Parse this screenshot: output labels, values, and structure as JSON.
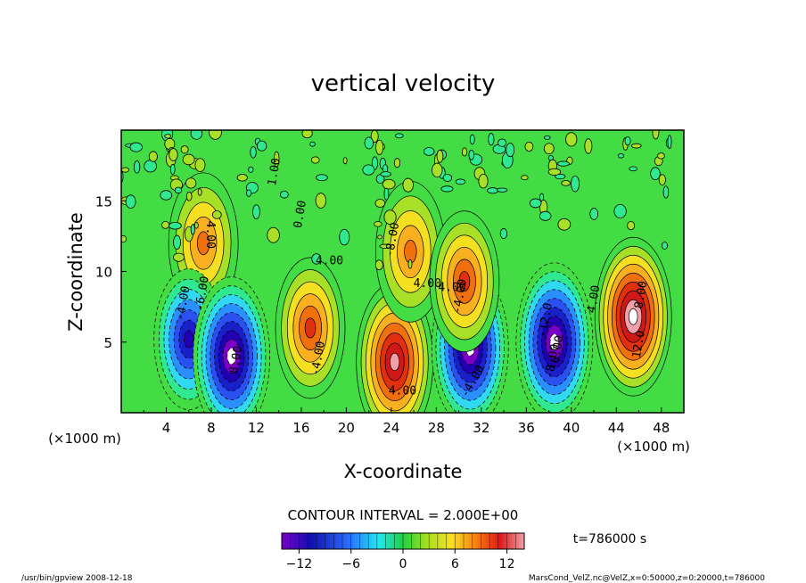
{
  "chart_data": {
    "type": "heatmap",
    "title": "vertical velocity",
    "xlabel": "X-coordinate",
    "ylabel": "Z-coordinate",
    "x_unit": "(×1000 m)",
    "x_unit_right": "(×1000 m)",
    "xlim": [
      0,
      50
    ],
    "ylim": [
      0,
      20
    ],
    "x_ticks": [
      "4",
      "8",
      "12",
      "16",
      "20",
      "24",
      "28",
      "32",
      "36",
      "40",
      "44",
      "48"
    ],
    "y_ticks": [
      "5",
      "10",
      "15"
    ],
    "contour_interval_text": "CONTOUR INTERVAL = 2.000E+00",
    "colorbar": {
      "range": [
        -14,
        14
      ],
      "ticks": [
        "−12",
        "−6",
        "0",
        "6",
        "12"
      ]
    },
    "time_label": "t=786000 s",
    "contour_labels": [
      "-4.00",
      "4.00",
      "-6.00",
      "8.00",
      "4.00",
      "-4.00",
      "4.00",
      "-4.00",
      "-8.00",
      "4.00",
      "-12.0",
      "-6.00",
      "4.00",
      "8.00",
      "12.0",
      "-4.00",
      "-8.00",
      "4.00",
      "1.00",
      "0.00"
    ],
    "features": [
      {
        "x": 7.3,
        "z": 12.0,
        "value": 8
      },
      {
        "x": 6.0,
        "z": 5.2,
        "value": -12
      },
      {
        "x": 9.8,
        "z": 4.0,
        "value": -16
      },
      {
        "x": 16.8,
        "z": 6.0,
        "value": 10
      },
      {
        "x": 24.3,
        "z": 3.6,
        "value": 14
      },
      {
        "x": 31.0,
        "z": 4.6,
        "value": -16
      },
      {
        "x": 25.7,
        "z": 11.4,
        "value": 8
      },
      {
        "x": 30.5,
        "z": 9.3,
        "value": 10
      },
      {
        "x": 38.5,
        "z": 5.0,
        "value": -16
      },
      {
        "x": 45.5,
        "z": 6.8,
        "value": 16
      }
    ]
  },
  "footer": {
    "left": "/usr/bin/gpview   2008-12-18",
    "right": "MarsCond_VelZ.nc@VelZ,x=0:50000,z=0:20000,t=786000"
  }
}
